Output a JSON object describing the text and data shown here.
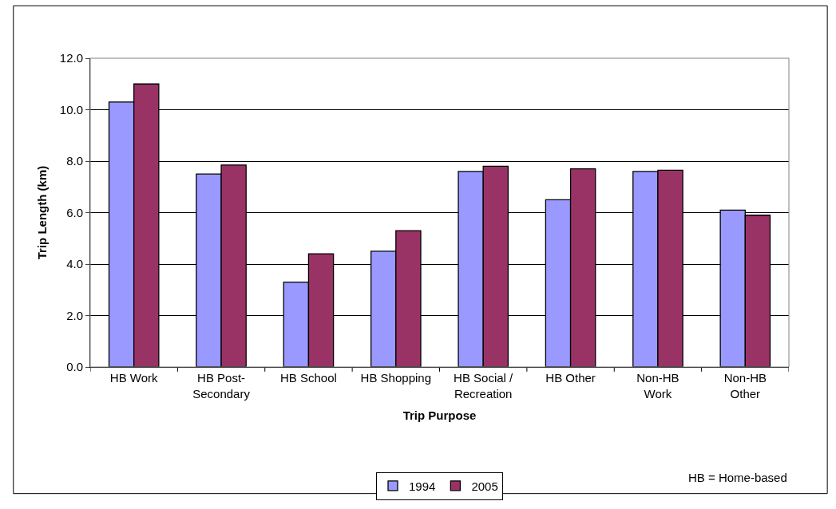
{
  "chart_data": {
    "type": "bar",
    "xlabel": "Trip Purpose",
    "ylabel": "Trip Length (km)",
    "categories": [
      "HB Work",
      "HB Post-\nSecondary",
      "HB School",
      "HB Shopping",
      "HB Social /\nRecreation",
      "HB Other",
      "Non-HB\nWork",
      "Non-HB\nOther"
    ],
    "series": [
      {
        "name": "1994",
        "color": "#9999ff",
        "values": [
          10.3,
          7.5,
          3.3,
          4.5,
          7.6,
          6.5,
          7.6,
          6.1
        ]
      },
      {
        "name": "2005",
        "color": "#993366",
        "values": [
          11.0,
          7.85,
          4.4,
          5.3,
          7.8,
          7.7,
          7.65,
          5.9
        ]
      }
    ],
    "ylim": [
      0,
      12
    ],
    "yticks": [
      {
        "value": 0,
        "label": "0.0"
      },
      {
        "value": 2,
        "label": "2.0"
      },
      {
        "value": 4,
        "label": "4.0"
      },
      {
        "value": 6,
        "label": "6.0"
      },
      {
        "value": 8,
        "label": "8.0"
      },
      {
        "value": 10,
        "label": "10.0"
      },
      {
        "value": 12,
        "label": "12.0"
      }
    ],
    "grid": "y",
    "legend": "bottom",
    "annotations": [
      "HB = Home-based"
    ]
  }
}
